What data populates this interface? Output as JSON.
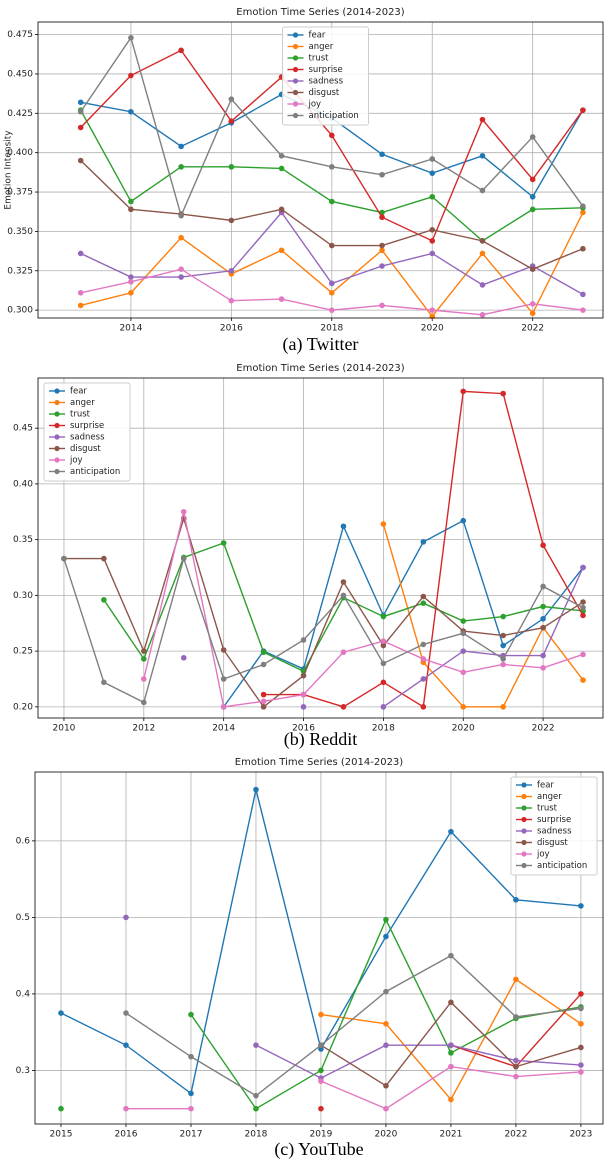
{
  "chart_data": [
    {
      "type": "line",
      "title": "Emotion Time Series (2014-2023)",
      "caption": "(a) Twitter",
      "ylabel": "Emotion Intensity",
      "x": [
        2013,
        2014,
        2015,
        2016,
        2017,
        2018,
        2019,
        2020,
        2021,
        2022,
        2023
      ],
      "xlim": [
        2012.15,
        2023.4
      ],
      "xticks": [
        2014,
        2016,
        2018,
        2020,
        2022
      ],
      "ylim": [
        0.295,
        0.483
      ],
      "yticks": [
        {
          "value": 0.3,
          "label": "0.300"
        },
        0.325,
        {
          "value": 0.35,
          "label": "0.350"
        },
        0.375,
        {
          "value": 0.4,
          "label": "0.400"
        },
        0.425,
        {
          "value": 0.45,
          "label": "0.450"
        },
        0.475
      ],
      "grid": true,
      "legend": "upper center",
      "series": [
        {
          "name": "fear",
          "color": "#1f77b4",
          "values": [
            0.432,
            0.426,
            0.404,
            0.419,
            0.437,
            0.422,
            0.399,
            0.387,
            0.398,
            0.372,
            0.427
          ]
        },
        {
          "name": "anger",
          "color": "#ff7f0e",
          "values": [
            0.303,
            0.311,
            0.346,
            0.323,
            0.338,
            0.311,
            0.338,
            0.296,
            0.336,
            0.298,
            0.362
          ]
        },
        {
          "name": "trust",
          "color": "#2ca02c",
          "values": [
            0.427,
            0.369,
            0.391,
            0.391,
            0.39,
            0.369,
            0.362,
            0.372,
            0.344,
            0.364,
            0.365
          ]
        },
        {
          "name": "surprise",
          "color": "#d62728",
          "values": [
            0.416,
            0.449,
            0.465,
            0.42,
            0.448,
            0.411,
            0.359,
            0.344,
            0.421,
            0.383,
            0.427
          ]
        },
        {
          "name": "sadness",
          "color": "#9467bd",
          "values": [
            0.336,
            0.321,
            0.321,
            0.325,
            0.362,
            0.317,
            0.328,
            0.336,
            0.316,
            0.328,
            0.31
          ]
        },
        {
          "name": "disgust",
          "color": "#8c564b",
          "values": [
            0.395,
            0.364,
            0.361,
            0.357,
            0.364,
            0.341,
            0.341,
            0.351,
            0.344,
            0.326,
            0.339
          ]
        },
        {
          "name": "joy",
          "color": "#e377c2",
          "values": [
            0.311,
            0.318,
            0.326,
            0.306,
            0.307,
            0.3,
            0.303,
            0.3,
            0.297,
            0.304,
            0.3
          ]
        },
        {
          "name": "anticipation",
          "color": "#7f7f7f",
          "values": [
            0.426,
            0.473,
            0.36,
            0.434,
            0.398,
            0.391,
            0.386,
            0.396,
            0.376,
            0.41,
            0.366
          ]
        }
      ]
    },
    {
      "type": "line",
      "title": "Emotion Time Series (2014-2023)",
      "caption": "(b) Reddit",
      "x": [
        2010,
        2011,
        2012,
        2013,
        2014,
        2015,
        2016,
        2017,
        2018,
        2019,
        2020,
        2021,
        2022,
        2023
      ],
      "xlim": [
        2009.35,
        2023.5
      ],
      "xticks": [
        2010,
        2012,
        2014,
        2016,
        2018,
        2020,
        2022
      ],
      "ylim": [
        0.19,
        0.495
      ],
      "yticks": [
        {
          "value": 0.2,
          "label": "0.20"
        },
        0.25,
        {
          "value": 0.3,
          "label": "0.30"
        },
        0.35,
        {
          "value": 0.4,
          "label": "0.40"
        },
        0.45
      ],
      "grid": true,
      "legend": "upper left",
      "series": [
        {
          "name": "fear",
          "color": "#1f77b4",
          "values": [
            null,
            null,
            null,
            null,
            0.2,
            0.25,
            0.234,
            0.362,
            0.282,
            0.348,
            0.367,
            0.255,
            0.279,
            0.325
          ]
        },
        {
          "name": "anger",
          "color": "#ff7f0e",
          "values": [
            null,
            null,
            null,
            null,
            null,
            null,
            null,
            null,
            0.364,
            0.24,
            0.2,
            0.2,
            0.271,
            0.224
          ]
        },
        {
          "name": "trust",
          "color": "#2ca02c",
          "values": [
            null,
            0.296,
            0.243,
            0.334,
            0.347,
            0.249,
            0.232,
            0.298,
            0.281,
            0.293,
            0.277,
            0.281,
            0.29,
            0.286
          ]
        },
        {
          "name": "surprise",
          "color": "#d62728",
          "values": [
            null,
            null,
            null,
            0.369,
            null,
            0.211,
            0.211,
            0.2,
            0.222,
            0.2,
            0.483,
            0.481,
            0.345,
            0.282
          ]
        },
        {
          "name": "sadness",
          "color": "#9467bd",
          "values": [
            null,
            null,
            null,
            0.244,
            null,
            null,
            0.2,
            null,
            0.2,
            0.225,
            0.25,
            0.246,
            0.246,
            0.325
          ]
        },
        {
          "name": "disgust",
          "color": "#8c564b",
          "values": [
            0.333,
            0.333,
            0.25,
            0.369,
            0.251,
            0.2,
            0.228,
            0.312,
            0.255,
            0.299,
            0.268,
            0.264,
            0.271,
            0.294
          ]
        },
        {
          "name": "joy",
          "color": "#e377c2",
          "values": [
            null,
            null,
            0.225,
            0.375,
            0.2,
            0.205,
            0.211,
            0.249,
            0.259,
            0.243,
            0.231,
            0.238,
            0.235,
            0.247
          ]
        },
        {
          "name": "anticipation",
          "color": "#7f7f7f",
          "values": [
            0.333,
            0.222,
            0.204,
            0.333,
            0.225,
            0.238,
            0.26,
            0.3,
            0.239,
            0.256,
            0.266,
            0.243,
            0.308,
            0.289
          ]
        }
      ]
    },
    {
      "type": "line",
      "title": "Emotion Time Series (2014-2023)",
      "caption": "(c) YouTube",
      "x": [
        2015,
        2016,
        2017,
        2018,
        2019,
        2020,
        2021,
        2022,
        2023
      ],
      "xlim": [
        2014.6,
        2023.34
      ],
      "xticks": [
        2015,
        2016,
        2017,
        2018,
        2019,
        2020,
        2021,
        2022,
        2023
      ],
      "ylim": [
        0.23,
        0.69
      ],
      "yticks": [
        0.3,
        0.4,
        0.5,
        0.6
      ],
      "grid": true,
      "legend": "upper right",
      "series": [
        {
          "name": "fear",
          "color": "#1f77b4",
          "values": [
            0.375,
            0.333,
            0.27,
            0.667,
            0.328,
            0.475,
            0.612,
            0.523,
            0.515
          ]
        },
        {
          "name": "anger",
          "color": "#ff7f0e",
          "values": [
            null,
            null,
            null,
            null,
            0.373,
            0.361,
            0.262,
            0.419,
            0.361
          ]
        },
        {
          "name": "trust",
          "color": "#2ca02c",
          "values": [
            0.25,
            null,
            0.373,
            0.25,
            0.3,
            0.497,
            0.323,
            0.368,
            0.383
          ]
        },
        {
          "name": "surprise",
          "color": "#d62728",
          "values": [
            null,
            null,
            null,
            null,
            0.25,
            null,
            0.333,
            0.305,
            0.4
          ]
        },
        {
          "name": "sadness",
          "color": "#9467bd",
          "values": [
            null,
            0.5,
            null,
            0.333,
            0.29,
            0.333,
            0.333,
            0.313,
            0.307
          ]
        },
        {
          "name": "disgust",
          "color": "#8c564b",
          "values": [
            null,
            null,
            null,
            null,
            0.333,
            0.28,
            0.389,
            0.305,
            0.33
          ]
        },
        {
          "name": "joy",
          "color": "#e377c2",
          "values": [
            null,
            0.25,
            0.25,
            null,
            0.286,
            0.25,
            0.305,
            0.292,
            0.298
          ]
        },
        {
          "name": "anticipation",
          "color": "#7f7f7f",
          "values": [
            null,
            0.375,
            0.318,
            0.267,
            0.333,
            0.403,
            0.45,
            0.37,
            0.381
          ]
        }
      ]
    }
  ]
}
